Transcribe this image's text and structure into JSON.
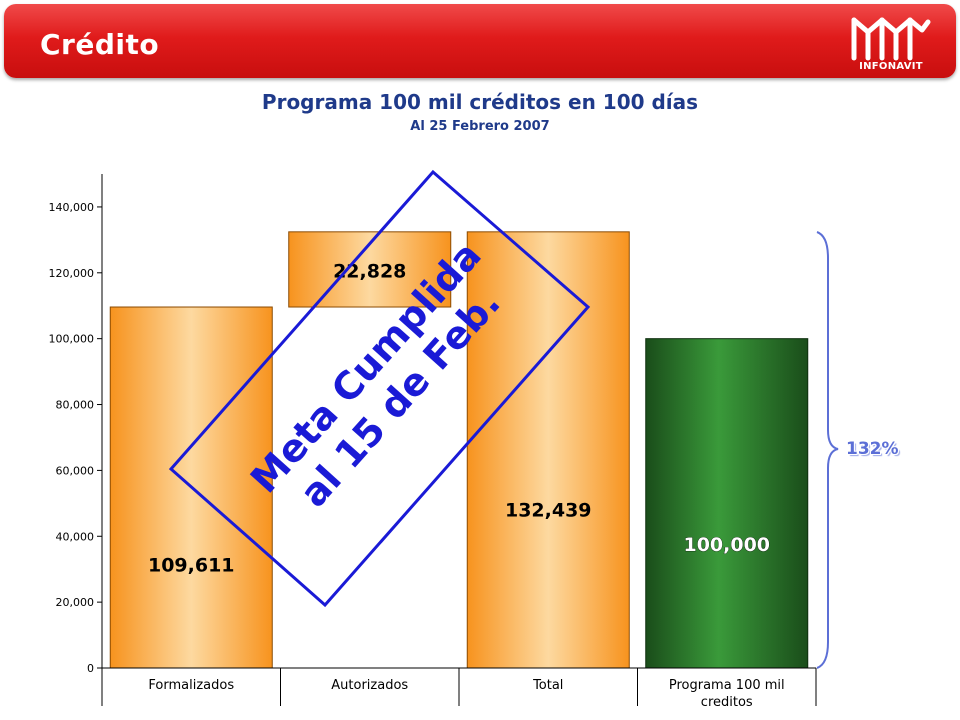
{
  "header": {
    "title": "Crédito",
    "logo_text": "INFONAVIT",
    "logo_icon": "infonavit-logo-icon"
  },
  "chart_data": {
    "type": "bar",
    "title": "Programa 100 mil créditos en 100 días",
    "subtitle": "Al 25 Febrero 2007",
    "categories": [
      "Formalizados",
      "Autorizados",
      "Total",
      "Programa 100 mil creditos"
    ],
    "category_label_lines": [
      [
        "Formalizados"
      ],
      [
        "Autorizados"
      ],
      [
        "Total"
      ],
      [
        "Programa 100 mil",
        "creditos"
      ]
    ],
    "bars": [
      {
        "category": "Formalizados",
        "base": 0,
        "value": 109611,
        "label": "109,611",
        "style": "orange"
      },
      {
        "category": "Autorizados",
        "base": 109611,
        "value": 22828,
        "label": "22,828",
        "style": "orange"
      },
      {
        "category": "Total",
        "base": 0,
        "value": 132439,
        "label": "132,439",
        "style": "orange"
      },
      {
        "category": "Programa 100 mil creditos",
        "base": 0,
        "value": 100000,
        "label": "100,000",
        "style": "green"
      }
    ],
    "ylim": [
      0,
      150000
    ],
    "yticks": [
      0,
      20000,
      40000,
      60000,
      80000,
      100000,
      120000,
      140000
    ],
    "ytick_labels": [
      "0",
      "20,000",
      "40,000",
      "60,000",
      "80,000",
      "100,000",
      "120,000",
      "140,000"
    ],
    "grid": false,
    "colors": {
      "orange_edge": "#f7931e",
      "orange_center": "#fdd9a0",
      "green_edge": "#1a4d1a",
      "green_center": "#3a9a3a",
      "annotation": "#1a1ad6"
    },
    "annotation": {
      "lines": [
        "Meta Cumplida",
        "al 15 de Feb."
      ]
    },
    "bracket_label": "132%"
  }
}
